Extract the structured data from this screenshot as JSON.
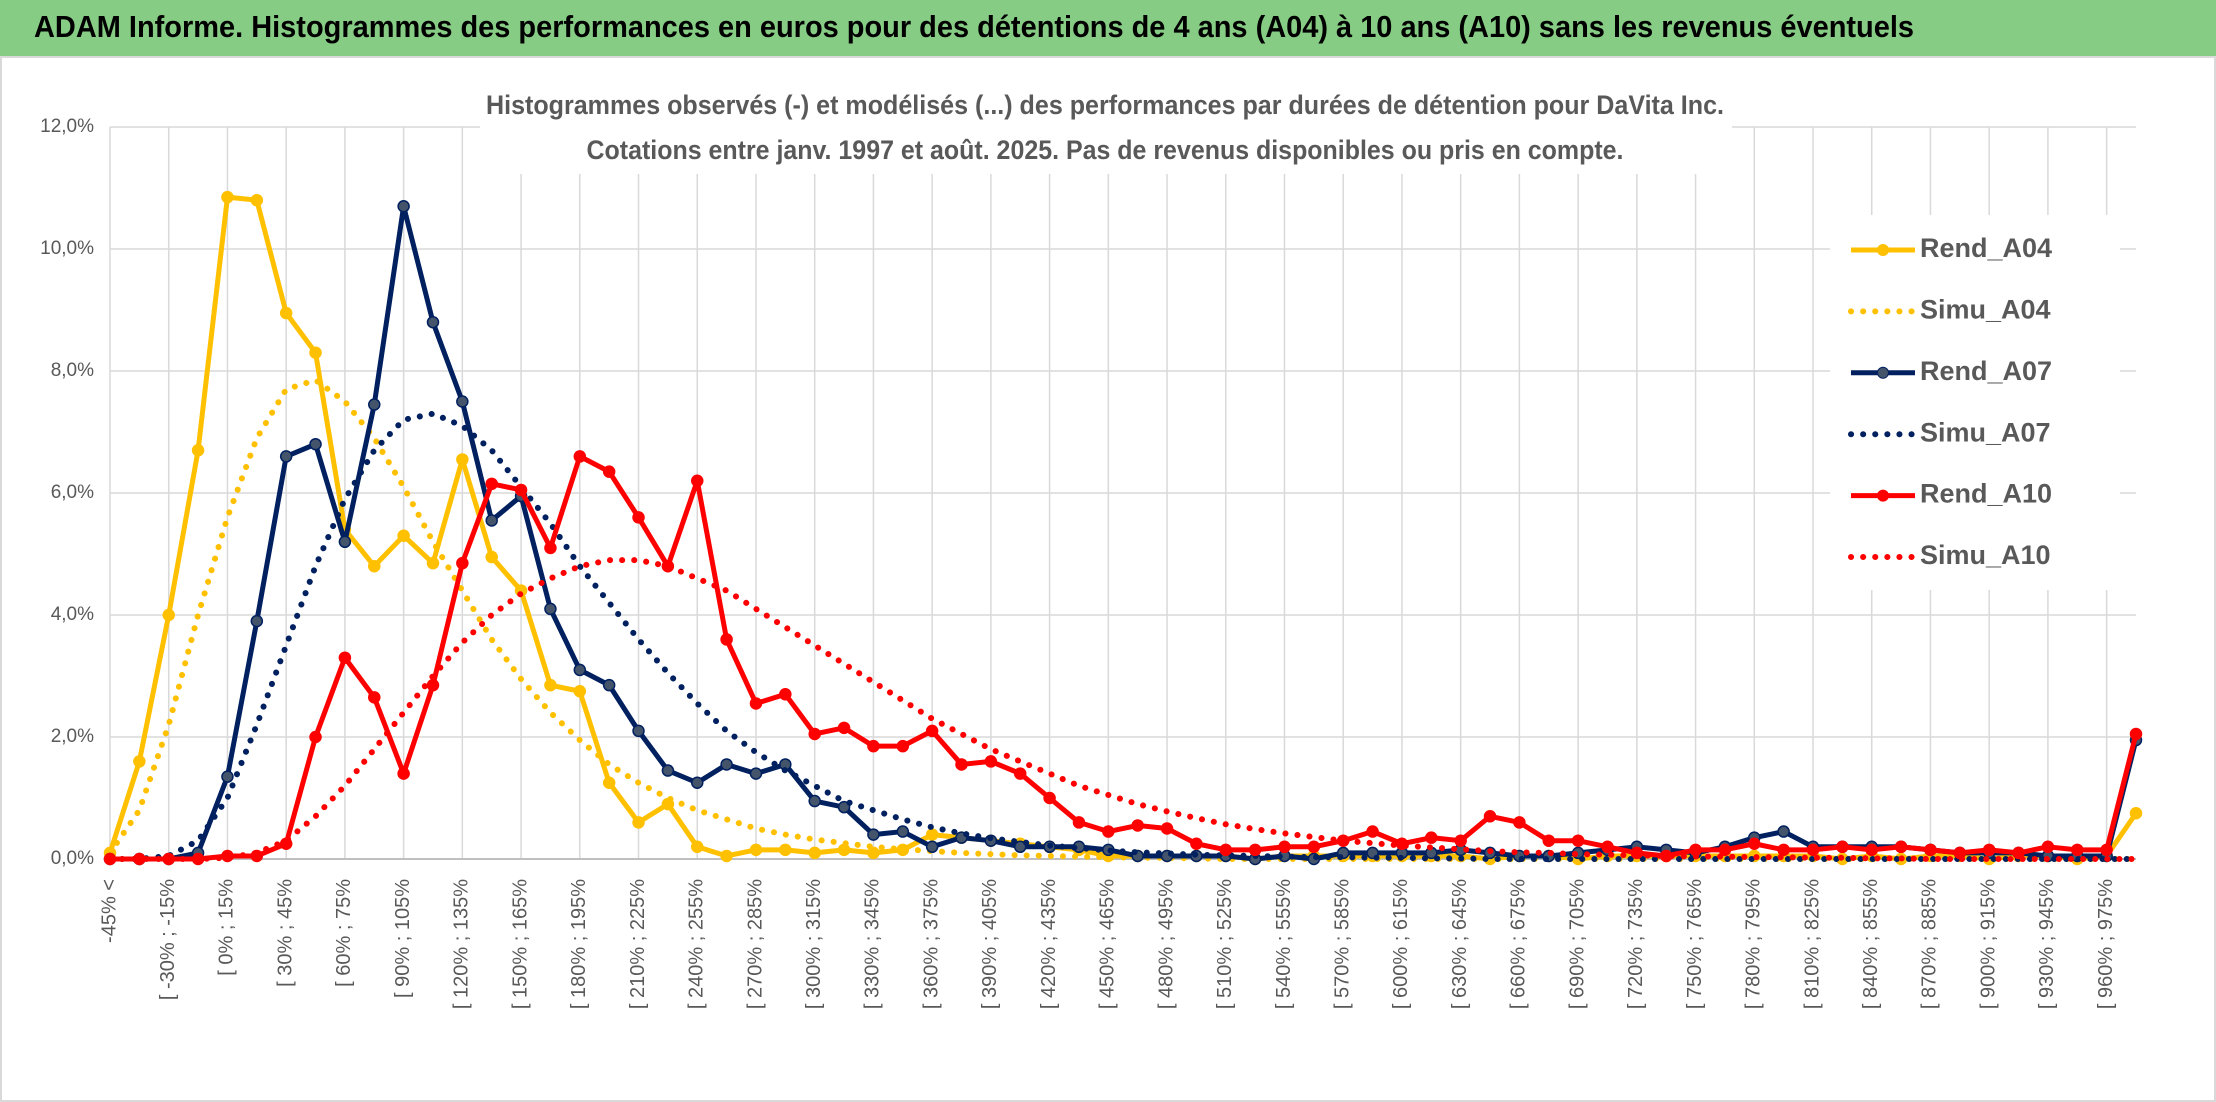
{
  "header": {
    "title": "ADAM Informe. Histogrammes des performances en euros pour des détentions de 4 ans (A04) à 10 ans (A10) sans les revenus éventuels"
  },
  "chart_data": {
    "type": "line",
    "title": "Histogrammes observés (-) et modélisés (...) des performances par durées de détention pour DaVita Inc.",
    "subtitle": "Cotations entre janv. 1997 et août. 2025. Pas de revenus disponibles ou pris en compte.",
    "categories": [
      "-45% <",
      null,
      "[ -30% ; -15%",
      null,
      "[ 0% ; 15%",
      null,
      "[ 30% ; 45%",
      null,
      "[ 60% ; 75%",
      null,
      "[ 90% ; 105%",
      null,
      "[ 120% ; 135%",
      null,
      "[ 150% ; 165%",
      null,
      "[ 180% ; 195%",
      null,
      "[ 210% ; 225%",
      null,
      "[ 240% ; 255%",
      null,
      "[ 270% ; 285%",
      null,
      "[ 300% ; 315%",
      null,
      "[ 330% ; 345%",
      null,
      "[ 360% ; 375%",
      null,
      "[ 390% ; 405%",
      null,
      "[ 420% ; 435%",
      null,
      "[ 450% ; 465%",
      null,
      "[ 480% ; 495%",
      null,
      "[ 510% ; 525%",
      null,
      "[ 540% ; 555%",
      null,
      "[ 570% ; 585%",
      null,
      "[ 600% ; 615%",
      null,
      "[ 630% ; 645%",
      null,
      "[ 660% ; 675%",
      null,
      "[ 690% ; 705%",
      null,
      "[ 720% ; 735%",
      null,
      "[ 750% ; 765%",
      null,
      "[ 780% ; 795%",
      null,
      "[ 810% ; 825%",
      null,
      "[ 840% ; 855%",
      null,
      "[ 870% ; 885%",
      null,
      "[ 900% ; 915%",
      null,
      "[ 930% ; 945%",
      null,
      "[ 960% ; 975%",
      null
    ],
    "series": [
      {
        "name": "Rend_A04",
        "color": "#ffc000",
        "dotted": false,
        "markers": true,
        "values": [
          0.1,
          1.6,
          4.0,
          6.7,
          10.85,
          10.8,
          8.95,
          8.3,
          5.4,
          4.8,
          5.3,
          4.85,
          6.55,
          4.95,
          4.4,
          2.85,
          2.75,
          1.25,
          0.6,
          0.9,
          0.2,
          0.05,
          0.15,
          0.15,
          0.1,
          0.15,
          0.1,
          0.15,
          0.4,
          0.35,
          0.3,
          0.25,
          0.2,
          0.15,
          0.05,
          0.05,
          0.05,
          0.05,
          0.05,
          0.0,
          0.05,
          0.05,
          0.05,
          0.05,
          0.05,
          0.05,
          0.05,
          0.0,
          0.05,
          0.05,
          0.0,
          0.05,
          0.05,
          0.05,
          0.05,
          0.05,
          0.05,
          0.05,
          0.05,
          0.0,
          0.05,
          0.0,
          0.05,
          0.05,
          0.0,
          0.05,
          0.05,
          0.0,
          0.05,
          0.75
        ]
      },
      {
        "name": "Simu_A04",
        "color": "#ffc000",
        "dotted": true,
        "markers": false,
        "values": [
          0.1,
          0.8,
          2.2,
          4.0,
          5.6,
          6.9,
          7.7,
          7.85,
          7.5,
          6.9,
          6.1,
          5.2,
          4.4,
          3.6,
          2.95,
          2.4,
          1.95,
          1.55,
          1.25,
          1.0,
          0.8,
          0.65,
          0.5,
          0.4,
          0.32,
          0.26,
          0.2,
          0.16,
          0.13,
          0.1,
          0.08,
          0.06,
          0.05,
          0.04,
          0.03,
          0.02,
          0.02,
          0.01,
          0,
          0,
          0,
          0,
          0,
          0,
          0,
          0,
          0,
          0,
          0,
          0,
          0,
          0,
          0,
          0,
          0,
          0,
          0,
          0,
          0,
          0,
          0,
          0,
          0,
          0,
          0,
          0,
          0,
          0,
          0,
          0
        ]
      },
      {
        "name": "Rend_A07",
        "color": "#002060",
        "dotted": false,
        "markers": true,
        "values": [
          0,
          0,
          0,
          0.1,
          1.35,
          3.9,
          6.6,
          6.8,
          5.2,
          7.45,
          10.7,
          8.8,
          7.5,
          5.55,
          5.95,
          4.1,
          3.1,
          2.85,
          2.1,
          1.45,
          1.25,
          1.55,
          1.4,
          1.55,
          0.95,
          0.85,
          0.4,
          0.45,
          0.2,
          0.35,
          0.3,
          0.2,
          0.2,
          0.2,
          0.15,
          0.05,
          0.05,
          0.05,
          0.05,
          0.0,
          0.05,
          0.0,
          0.1,
          0.1,
          0.1,
          0.1,
          0.15,
          0.1,
          0.05,
          0.05,
          0.1,
          0.15,
          0.2,
          0.15,
          0.1,
          0.2,
          0.35,
          0.45,
          0.2,
          0.2,
          0.2,
          0.2,
          0.15,
          0.1,
          0.1,
          0.1,
          0.05,
          0.05,
          0.05,
          1.95
        ]
      },
      {
        "name": "Simu_A07",
        "color": "#002060",
        "dotted": true,
        "markers": false,
        "values": [
          0,
          0,
          0.05,
          0.3,
          1.0,
          2.2,
          3.5,
          4.8,
          5.9,
          6.7,
          7.2,
          7.3,
          7.1,
          6.7,
          6.1,
          5.5,
          4.8,
          4.2,
          3.6,
          3.05,
          2.55,
          2.1,
          1.75,
          1.45,
          1.2,
          0.95,
          0.8,
          0.65,
          0.52,
          0.42,
          0.34,
          0.28,
          0.22,
          0.18,
          0.14,
          0.11,
          0.09,
          0.07,
          0.06,
          0.05,
          0.04,
          0.03,
          0.03,
          0.02,
          0.02,
          0.01,
          0.01,
          0,
          0,
          0,
          0,
          0,
          0,
          0,
          0,
          0,
          0,
          0,
          0,
          0,
          0,
          0,
          0,
          0,
          0,
          0,
          0,
          0,
          0,
          0
        ]
      },
      {
        "name": "Rend_A10",
        "color": "#ff0000",
        "dotted": false,
        "markers": true,
        "values": [
          0,
          0,
          0,
          0,
          0.05,
          0.05,
          0.25,
          2.0,
          3.3,
          2.65,
          1.4,
          2.85,
          4.85,
          6.15,
          6.05,
          5.1,
          6.6,
          6.35,
          5.6,
          4.8,
          6.2,
          3.6,
          2.55,
          2.7,
          2.05,
          2.15,
          1.85,
          1.85,
          2.1,
          1.55,
          1.6,
          1.4,
          1.0,
          0.6,
          0.45,
          0.55,
          0.5,
          0.25,
          0.15,
          0.15,
          0.2,
          0.2,
          0.3,
          0.45,
          0.25,
          0.35,
          0.3,
          0.7,
          0.6,
          0.3,
          0.3,
          0.2,
          0.1,
          0.05,
          0.15,
          0.15,
          0.25,
          0.15,
          0.15,
          0.2,
          0.15,
          0.2,
          0.15,
          0.1,
          0.15,
          0.1,
          0.2,
          0.15,
          0.15,
          2.05
        ]
      },
      {
        "name": "Simu_A10",
        "color": "#ff0000",
        "dotted": true,
        "markers": false,
        "values": [
          0,
          0,
          0,
          0,
          0.02,
          0.1,
          0.3,
          0.7,
          1.2,
          1.8,
          2.4,
          3.0,
          3.55,
          4.0,
          4.35,
          4.6,
          4.8,
          4.9,
          4.9,
          4.8,
          4.6,
          4.4,
          4.1,
          3.8,
          3.5,
          3.2,
          2.9,
          2.6,
          2.3,
          2.05,
          1.8,
          1.6,
          1.4,
          1.2,
          1.05,
          0.9,
          0.78,
          0.67,
          0.57,
          0.49,
          0.42,
          0.36,
          0.3,
          0.26,
          0.22,
          0.19,
          0.16,
          0.13,
          0.11,
          0.1,
          0.08,
          0.07,
          0.06,
          0.05,
          0.04,
          0.04,
          0.03,
          0.03,
          0.02,
          0.02,
          0.01,
          0.01,
          0,
          0,
          0,
          0,
          0,
          0,
          0,
          0
        ]
      }
    ],
    "ylim": [
      0,
      12
    ],
    "yticks": [
      {
        "value": 0,
        "label": "0,0%"
      },
      {
        "value": 2,
        "label": "2,0%"
      },
      {
        "value": 4,
        "label": "4,0%"
      },
      {
        "value": 6,
        "label": "6,0%"
      },
      {
        "value": 8,
        "label": "8,0%"
      },
      {
        "value": 10,
        "label": "10,0%"
      },
      {
        "value": 12,
        "label": "12,0%"
      }
    ],
    "grid": true,
    "legend": "right"
  }
}
